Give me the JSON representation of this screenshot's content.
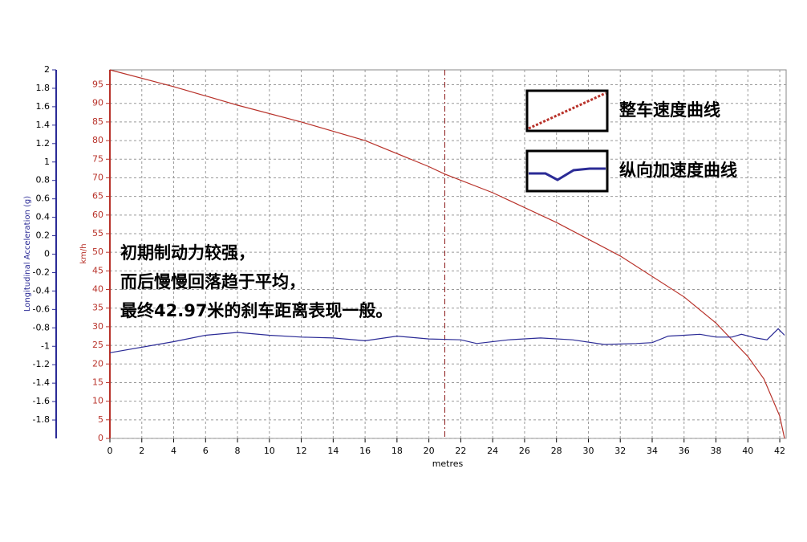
{
  "chart_data": {
    "type": "line",
    "xlabel": "metres",
    "ylabel": "Longitudinal Acceleration (g)",
    "y2label": "km/h",
    "xlim": [
      0,
      42.4
    ],
    "xticks": [
      0,
      2,
      4,
      6,
      8,
      10,
      12,
      14,
      16,
      18,
      20,
      22,
      24,
      26,
      28,
      30,
      32,
      34,
      36,
      38,
      40,
      42
    ],
    "ylim": [
      -2,
      2
    ],
    "yticks": [
      2,
      1.8,
      1.6,
      1.4,
      1.2,
      1,
      0.8,
      0.6,
      0.4,
      0.2,
      0,
      -0.2,
      -0.4,
      -0.6,
      -0.8,
      -1,
      -1.2,
      -1.4,
      -1.6,
      -1.8
    ],
    "y2lim": [
      0,
      99
    ],
    "y2ticks": [
      0,
      5,
      10,
      15,
      20,
      25,
      30,
      35,
      40,
      45,
      50,
      55,
      60,
      65,
      70,
      75,
      80,
      85,
      90,
      95
    ],
    "grid": true,
    "cursor_x": 21,
    "annotation": [
      "初期制动力较强，",
      "而后慢慢回落趋于平均，",
      "最终42.97米的刹车距离表现一般。"
    ],
    "series": [
      {
        "name": "整车速度曲线",
        "color": "#b8322a",
        "axis": "y2",
        "x": [
          0,
          4,
          8,
          12,
          16,
          20,
          21,
          24,
          28,
          32,
          36,
          38,
          40,
          41,
          42,
          42.3
        ],
        "values": [
          99,
          94.5,
          89.5,
          85,
          80,
          73,
          71,
          66,
          58,
          49,
          38,
          31,
          22,
          16,
          6,
          0
        ]
      },
      {
        "name": "纵向加速度曲线",
        "color": "#2b2b96",
        "x": [
          0,
          4,
          6,
          8,
          10,
          12,
          14,
          16,
          18,
          20,
          22,
          23,
          25,
          27,
          29,
          31,
          33,
          34,
          35,
          36,
          37,
          38,
          39,
          39.6,
          40.5,
          41.2,
          41.9,
          42.3
        ],
        "values": [
          -1.07,
          -0.95,
          -0.88,
          -0.85,
          -0.88,
          -0.9,
          -0.91,
          -0.94,
          -0.89,
          -0.92,
          -0.93,
          -0.97,
          -0.93,
          -0.91,
          -0.93,
          -0.98,
          -0.97,
          -0.96,
          -0.89,
          -0.88,
          -0.87,
          -0.9,
          -0.9,
          -0.87,
          -0.91,
          -0.93,
          -0.81,
          -0.88
        ]
      }
    ]
  }
}
